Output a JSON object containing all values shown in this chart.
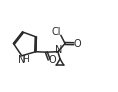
{
  "bg_color": "#ffffff",
  "line_color": "#2a2a2a",
  "line_width": 1.1,
  "font_size_atom": 6.5,
  "text_color": "#2a2a2a",
  "figsize": [
    1.18,
    0.92
  ],
  "dpi": 100,
  "xlim": [
    0,
    11.8
  ],
  "ylim": [
    0,
    9.2
  ]
}
